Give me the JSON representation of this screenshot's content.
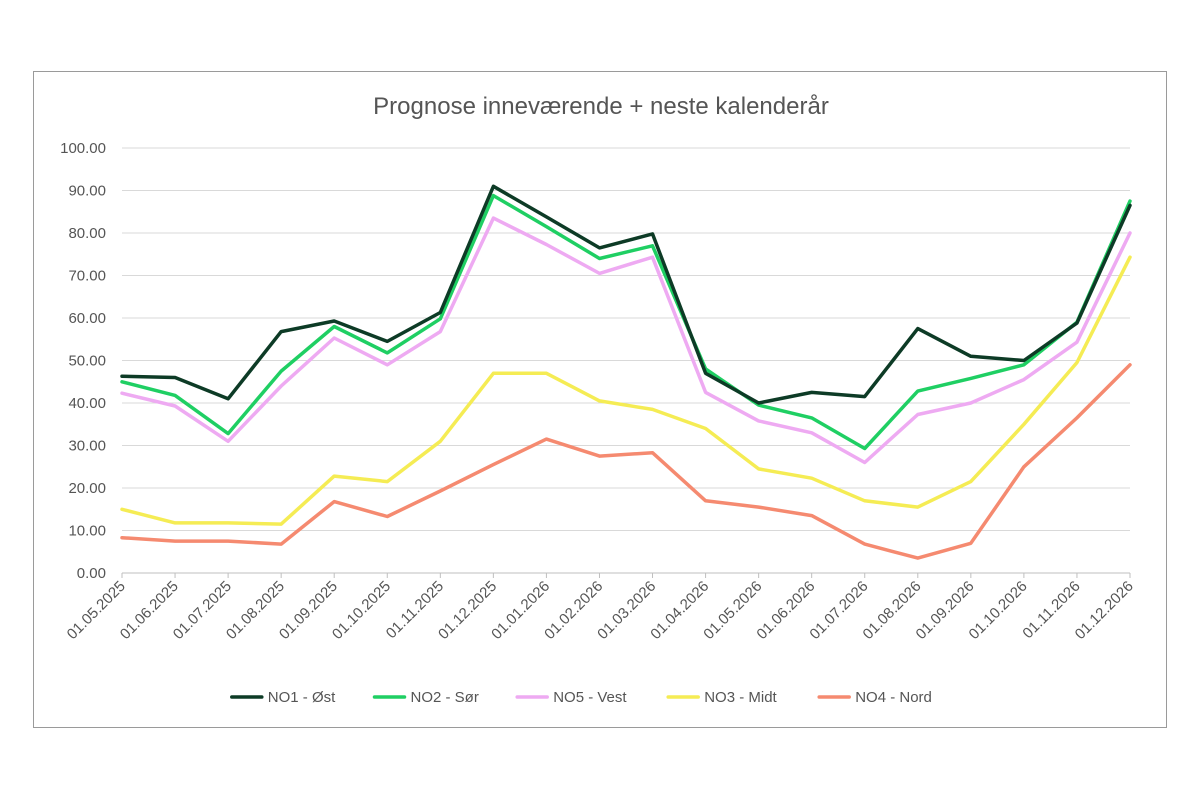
{
  "chart_data": {
    "type": "line",
    "title": "Prognose inneværende + neste kalenderår",
    "xlabel": "",
    "ylabel": "",
    "ylim": [
      0,
      100
    ],
    "ytick_step": 10,
    "ytick_labels": [
      "0.00",
      "10.00",
      "20.00",
      "30.00",
      "40.00",
      "50.00",
      "60.00",
      "70.00",
      "80.00",
      "90.00",
      "100.00"
    ],
    "grid": true,
    "legend_position": "bottom",
    "categories": [
      "01.05.2025",
      "01.06.2025",
      "01.07.2025",
      "01.08.2025",
      "01.09.2025",
      "01.10.2025",
      "01.11.2025",
      "01.12.2025",
      "01.01.2026",
      "01.02.2026",
      "01.03.2026",
      "01.04.2026",
      "01.05.2026",
      "01.06.2026",
      "01.07.2026",
      "01.08.2026",
      "01.09.2026",
      "01.10.2026",
      "01.11.2026",
      "01.12.2026"
    ],
    "series": [
      {
        "name": "NO1 - Øst",
        "color": "#0d3b26",
        "values": [
          46.3,
          46.0,
          41.0,
          56.8,
          59.3,
          54.5,
          61.3,
          91.0,
          83.8,
          76.5,
          79.8,
          47.0,
          40.0,
          42.5,
          41.5,
          57.5,
          51.0,
          50.0,
          58.8,
          86.5
        ]
      },
      {
        "name": "NO2 - Sør",
        "color": "#1fcf63",
        "values": [
          45.0,
          41.8,
          32.8,
          47.5,
          58.0,
          51.8,
          59.8,
          88.8,
          81.5,
          74.0,
          77.0,
          48.0,
          39.5,
          36.5,
          29.3,
          42.8,
          45.8,
          49.0,
          59.0,
          87.5
        ]
      },
      {
        "name": "NO5 - Vest",
        "color": "#eeaaf2",
        "values": [
          42.3,
          39.3,
          31.0,
          44.0,
          55.3,
          49.0,
          56.8,
          83.5,
          77.3,
          70.5,
          74.3,
          42.5,
          35.8,
          33.0,
          26.0,
          37.3,
          40.0,
          45.5,
          54.3,
          80.0
        ]
      },
      {
        "name": "NO3 - Midt",
        "color": "#f5ec54",
        "values": [
          15.0,
          11.8,
          11.8,
          11.5,
          22.8,
          21.5,
          31.0,
          47.0,
          47.0,
          40.5,
          38.5,
          34.0,
          24.5,
          22.3,
          17.0,
          15.5,
          21.5,
          35.0,
          49.5,
          74.3
        ]
      },
      {
        "name": "NO4 - Nord",
        "color": "#f58a70",
        "values": [
          8.3,
          7.5,
          7.5,
          6.8,
          16.8,
          13.3,
          19.3,
          25.5,
          31.5,
          27.5,
          28.3,
          17.0,
          15.5,
          13.5,
          6.8,
          3.5,
          7.0,
          25.0,
          36.5,
          49.0
        ]
      }
    ]
  }
}
